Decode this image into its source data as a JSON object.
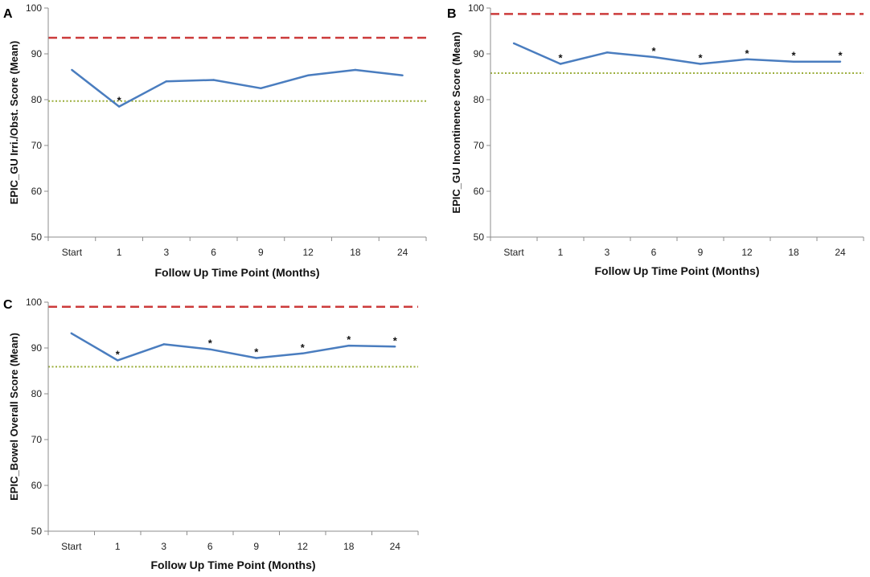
{
  "colors": {
    "series": "#4a7dbf",
    "upper_ref": "#cc3b3b",
    "lower_ref": "#9aad3a",
    "axis": "#8c8c8c"
  },
  "chart_data": [
    {
      "panel": "A",
      "type": "line",
      "categories": [
        "Start",
        "1",
        "3",
        "6",
        "9",
        "12",
        "18",
        "24"
      ],
      "values": [
        86.5,
        78.5,
        84.0,
        84.3,
        82.5,
        85.3,
        86.5,
        85.3
      ],
      "significant": [
        false,
        true,
        false,
        false,
        false,
        false,
        false,
        false
      ],
      "significance_marker": "*",
      "upper_reference": 93.5,
      "lower_reference": 79.7,
      "xlabel": "Follow Up Time Point (Months)",
      "ylabel": "EPIC_GU Irri./Obst. Score (Mean)",
      "ylim": [
        50,
        100
      ],
      "yticks": [
        50,
        60,
        70,
        80,
        90,
        100
      ]
    },
    {
      "panel": "B",
      "type": "line",
      "categories": [
        "Start",
        "1",
        "3",
        "6",
        "9",
        "12",
        "18",
        "24"
      ],
      "values": [
        92.3,
        87.8,
        90.3,
        89.3,
        87.8,
        88.8,
        88.3,
        88.3
      ],
      "significant": [
        false,
        true,
        false,
        true,
        true,
        true,
        true,
        true
      ],
      "significance_marker": "*",
      "upper_reference": 98.7,
      "lower_reference": 85.8,
      "xlabel": "Follow Up Time Point (Months)",
      "ylabel": "EPIC_GU Incontinence  Score (Mean)",
      "ylim": [
        50,
        100
      ],
      "yticks": [
        50,
        60,
        70,
        80,
        90,
        100
      ]
    },
    {
      "panel": "C",
      "type": "line",
      "categories": [
        "Start",
        "1",
        "3",
        "6",
        "9",
        "12",
        "18",
        "24"
      ],
      "values": [
        93.2,
        87.3,
        90.8,
        89.7,
        87.8,
        88.8,
        90.5,
        90.3
      ],
      "significant": [
        false,
        true,
        false,
        true,
        true,
        true,
        true,
        true
      ],
      "significance_marker": "*",
      "upper_reference": 99.0,
      "lower_reference": 85.9,
      "xlabel": "Follow Up Time Point (Months)",
      "ylabel": "EPIC_Bowel Overall Score (Mean)",
      "ylim": [
        50,
        100
      ],
      "yticks": [
        50,
        60,
        70,
        80,
        90,
        100
      ]
    }
  ]
}
